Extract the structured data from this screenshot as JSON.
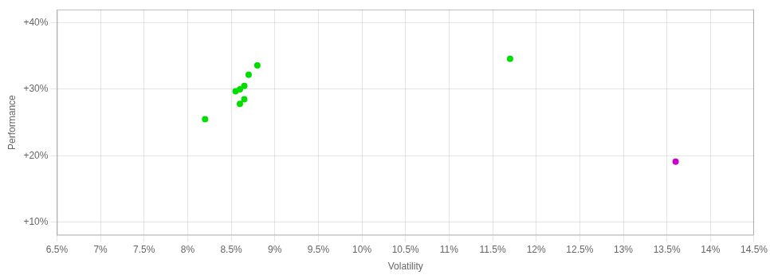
{
  "chart_data": {
    "type": "scatter",
    "xlabel": "Volatility",
    "ylabel": "Performance",
    "series": [
      {
        "color": "#00dd00",
        "x": [
          0.088,
          0.087,
          0.0865,
          0.086,
          0.0855,
          0.0865,
          0.086,
          0.082,
          0.117
        ],
        "values": [
          0.336,
          0.322,
          0.305,
          0.3,
          0.297,
          0.285,
          0.278,
          0.255,
          0.346
        ]
      },
      {
        "color": "#cc00cc",
        "x": [
          0.136
        ],
        "values": [
          0.191
        ]
      }
    ],
    "xlim": [
      0.065,
      0.145
    ],
    "ylim": [
      0.08,
      0.42
    ],
    "xticks": [
      {
        "value": 0.065,
        "label": "6.5%"
      },
      {
        "value": 0.07,
        "label": "7%"
      },
      {
        "value": 0.075,
        "label": "7.5%"
      },
      {
        "value": 0.08,
        "label": "8%"
      },
      {
        "value": 0.085,
        "label": "8.5%"
      },
      {
        "value": 0.09,
        "label": "9%"
      },
      {
        "value": 0.095,
        "label": "9.5%"
      },
      {
        "value": 0.1,
        "label": "10%"
      },
      {
        "value": 0.105,
        "label": "10.5%"
      },
      {
        "value": 0.11,
        "label": "11%"
      },
      {
        "value": 0.115,
        "label": "11.5%"
      },
      {
        "value": 0.12,
        "label": "12%"
      },
      {
        "value": 0.125,
        "label": "12.5%"
      },
      {
        "value": 0.13,
        "label": "13%"
      },
      {
        "value": 0.135,
        "label": "13.5%"
      },
      {
        "value": 0.14,
        "label": "14%"
      },
      {
        "value": 0.145,
        "label": "14.5%"
      }
    ],
    "yticks": [
      {
        "value": 0.1,
        "label": "+10%"
      },
      {
        "value": 0.2,
        "label": "+20%"
      },
      {
        "value": 0.3,
        "label": "+30%"
      },
      {
        "value": 0.4,
        "label": "+40%"
      }
    ],
    "grid": true
  }
}
